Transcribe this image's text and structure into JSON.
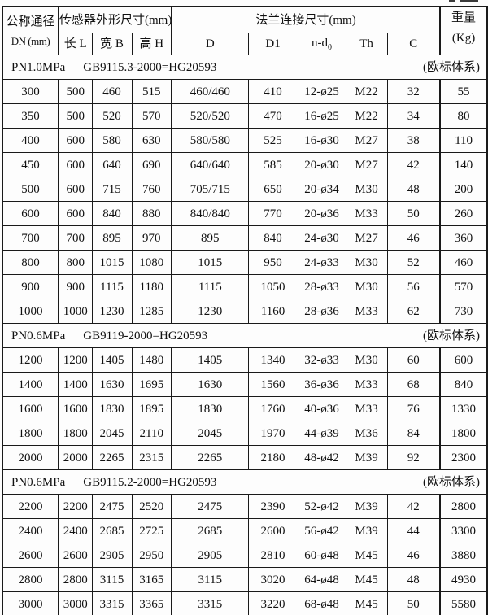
{
  "colors": {
    "background": "#fdfdfd",
    "border": "#1a1a1a",
    "text": "#111111"
  },
  "table": {
    "header": {
      "dn": {
        "line1": "公称通径",
        "line2": "DN (mm)"
      },
      "sensor_group": "传感器外形尺寸(mm)",
      "flange_group": "法兰连接尺寸(mm)",
      "weight": {
        "line1": "重量",
        "line2": "(Kg)"
      },
      "sub_columns": {
        "length": "长 L",
        "width": "宽 B",
        "height": "高 H",
        "d": "D",
        "d1": "D1",
        "ndo_base": "n-d",
        "ndo_sub": "0",
        "th": "Th",
        "c": "C"
      }
    },
    "sections": [
      {
        "pressure": "PN1.0MPa",
        "standard": "GB9115.3-2000=HG20593",
        "note": "(欧标体系)",
        "rows": [
          [
            "300",
            "500",
            "460",
            "515",
            "460/460",
            "410",
            "12-ø25",
            "M22",
            "32",
            "55"
          ],
          [
            "350",
            "500",
            "520",
            "570",
            "520/520",
            "470",
            "16-ø25",
            "M22",
            "34",
            "80"
          ],
          [
            "400",
            "600",
            "580",
            "630",
            "580/580",
            "525",
            "16-ø30",
            "M27",
            "38",
            "110"
          ],
          [
            "450",
            "600",
            "640",
            "690",
            "640/640",
            "585",
            "20-ø30",
            "M27",
            "42",
            "140"
          ],
          [
            "500",
            "600",
            "715",
            "760",
            "705/715",
            "650",
            "20-ø34",
            "M30",
            "48",
            "200"
          ],
          [
            "600",
            "600",
            "840",
            "880",
            "840/840",
            "770",
            "20-ø36",
            "M33",
            "50",
            "260"
          ],
          [
            "700",
            "700",
            "895",
            "970",
            "895",
            "840",
            "24-ø30",
            "M27",
            "46",
            "360"
          ],
          [
            "800",
            "800",
            "1015",
            "1080",
            "1015",
            "950",
            "24-ø33",
            "M30",
            "52",
            "460"
          ],
          [
            "900",
            "900",
            "1115",
            "1180",
            "1115",
            "1050",
            "28-ø33",
            "M30",
            "56",
            "570"
          ],
          [
            "1000",
            "1000",
            "1230",
            "1285",
            "1230",
            "1160",
            "28-ø36",
            "M33",
            "62",
            "730"
          ]
        ]
      },
      {
        "pressure": "PN0.6MPa",
        "standard": "GB9119-2000=HG20593",
        "note": "(欧标体系)",
        "rows": [
          [
            "1200",
            "1200",
            "1405",
            "1480",
            "1405",
            "1340",
            "32-ø33",
            "M30",
            "60",
            "600"
          ],
          [
            "1400",
            "1400",
            "1630",
            "1695",
            "1630",
            "1560",
            "36-ø36",
            "M33",
            "68",
            "840"
          ],
          [
            "1600",
            "1600",
            "1830",
            "1895",
            "1830",
            "1760",
            "40-ø36",
            "M33",
            "76",
            "1330"
          ],
          [
            "1800",
            "1800",
            "2045",
            "2110",
            "2045",
            "1970",
            "44-ø39",
            "M36",
            "84",
            "1800"
          ],
          [
            "2000",
            "2000",
            "2265",
            "2315",
            "2265",
            "2180",
            "48-ø42",
            "M39",
            "92",
            "2300"
          ]
        ]
      },
      {
        "pressure": "PN0.6MPa",
        "standard": "GB9115.2-2000=HG20593",
        "note": "(欧标体系)",
        "rows": [
          [
            "2200",
            "2200",
            "2475",
            "2520",
            "2475",
            "2390",
            "52-ø42",
            "M39",
            "42",
            "2800"
          ],
          [
            "2400",
            "2400",
            "2685",
            "2725",
            "2685",
            "2600",
            "56-ø42",
            "M39",
            "44",
            "3300"
          ],
          [
            "2600",
            "2600",
            "2905",
            "2950",
            "2905",
            "2810",
            "60-ø48",
            "M45",
            "46",
            "3880"
          ],
          [
            "2800",
            "2800",
            "3115",
            "3165",
            "3115",
            "3020",
            "64-ø48",
            "M45",
            "48",
            "4930"
          ],
          [
            "3000",
            "3000",
            "3315",
            "3365",
            "3315",
            "3220",
            "68-ø48",
            "M45",
            "50",
            "5580"
          ]
        ]
      }
    ]
  }
}
